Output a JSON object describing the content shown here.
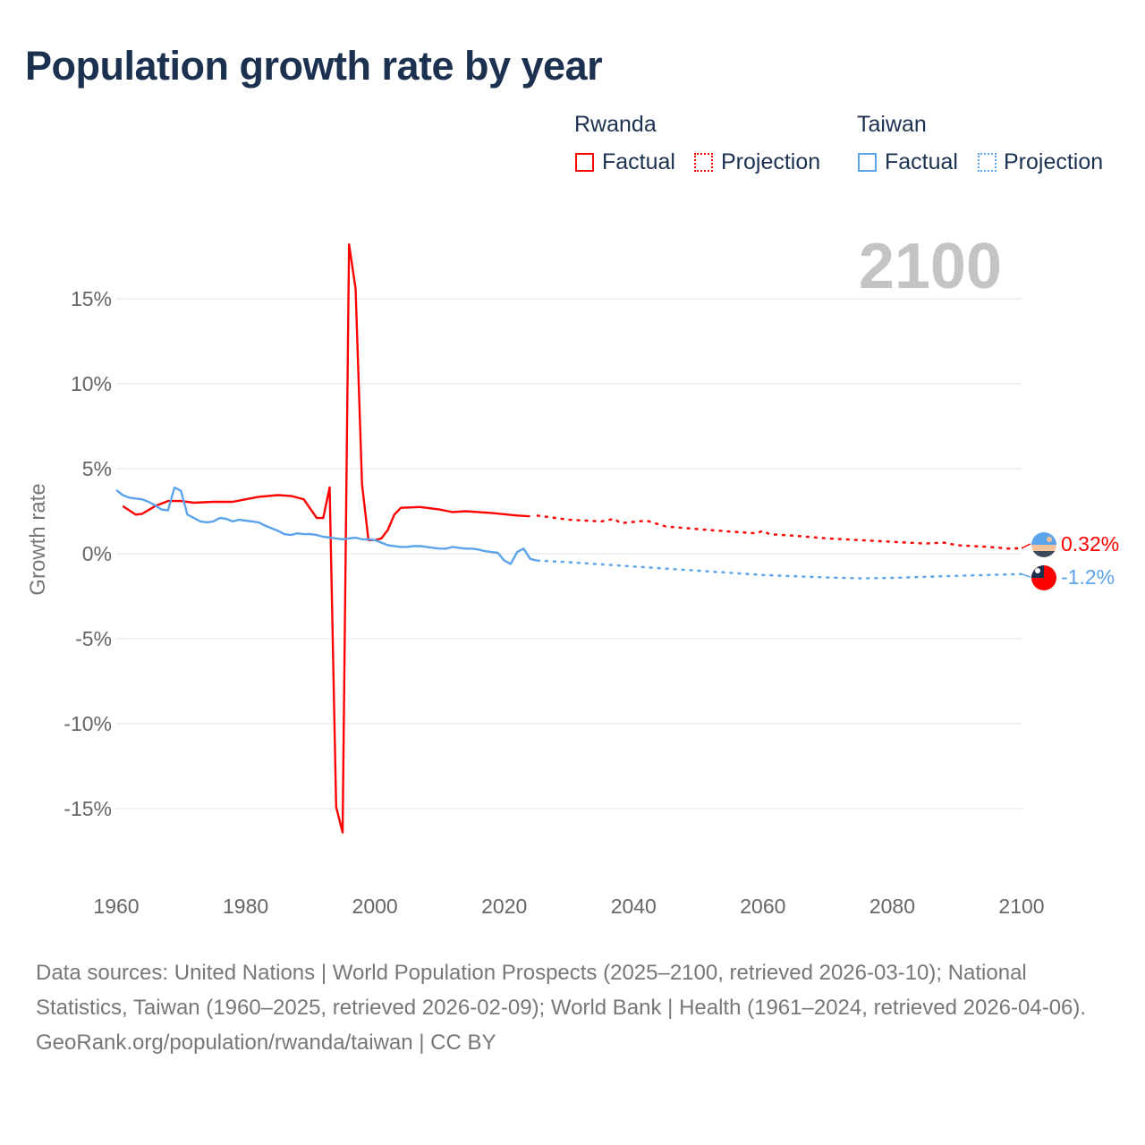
{
  "title": "Population growth rate by year",
  "legend": {
    "groups": [
      {
        "name": "Rwanda",
        "color": "#ff0000",
        "factual": "Factual",
        "projection": "Projection"
      },
      {
        "name": "Taiwan",
        "color": "#5ba3ea",
        "factual": "Factual",
        "projection": "Projection"
      }
    ]
  },
  "footer": {
    "sources": "Data sources: United Nations | World Population Prospects (2025–2100, retrieved 2026-03-10); National Statistics, Taiwan (1960–2025, retrieved 2026-02-09); World Bank | Health (1961–2024, retrieved 2026-04-06).",
    "link": "GeoRank.org/population/rwanda/taiwan | CC BY"
  },
  "chart_data": {
    "type": "line",
    "title": "Population growth rate by year",
    "year_label": "2100",
    "ylabel": "Growth rate",
    "xlim": [
      1960,
      2100
    ],
    "ylim": [
      -17,
      19
    ],
    "yticks": [
      15,
      10,
      5,
      0,
      -5,
      -10,
      -15
    ],
    "ytick_labels": [
      "15%",
      "10%",
      "5%",
      "0%",
      "-5%",
      "-10%",
      "-15%"
    ],
    "xticks": [
      1960,
      1980,
      2000,
      2020,
      2040,
      2060,
      2080,
      2100
    ],
    "xtick_labels": [
      "1960",
      "1980",
      "2000",
      "2020",
      "2040",
      "2060",
      "2080",
      "2100"
    ],
    "grid": true,
    "series": [
      {
        "name": "Rwanda",
        "color": "#ff0000",
        "end_label": "0.32%",
        "factual": [
          [
            1961,
            2.8
          ],
          [
            1963,
            2.3
          ],
          [
            1964,
            2.35
          ],
          [
            1966,
            2.8
          ],
          [
            1968,
            3.1
          ],
          [
            1970,
            3.1
          ],
          [
            1972,
            3.0
          ],
          [
            1975,
            3.05
          ],
          [
            1978,
            3.05
          ],
          [
            1980,
            3.2
          ],
          [
            1982,
            3.35
          ],
          [
            1985,
            3.45
          ],
          [
            1987,
            3.4
          ],
          [
            1989,
            3.2
          ],
          [
            1991,
            2.1
          ],
          [
            1992,
            2.1
          ],
          [
            1993,
            3.9
          ],
          [
            1994,
            -14.9
          ],
          [
            1995,
            -16.4
          ],
          [
            1996,
            18.2
          ],
          [
            1997,
            15.6
          ],
          [
            1998,
            4.1
          ],
          [
            1999,
            0.8
          ],
          [
            2000,
            0.8
          ],
          [
            2001,
            0.9
          ],
          [
            2002,
            1.4
          ],
          [
            2003,
            2.3
          ],
          [
            2004,
            2.7
          ],
          [
            2007,
            2.75
          ],
          [
            2010,
            2.6
          ],
          [
            2012,
            2.45
          ],
          [
            2014,
            2.5
          ],
          [
            2018,
            2.4
          ],
          [
            2022,
            2.25
          ],
          [
            2024,
            2.2
          ]
        ],
        "projection": [
          [
            2025,
            2.25
          ],
          [
            2030,
            2.0
          ],
          [
            2035,
            1.9
          ],
          [
            2037,
            2.05
          ],
          [
            2038,
            1.8
          ],
          [
            2042,
            1.95
          ],
          [
            2045,
            1.6
          ],
          [
            2050,
            1.45
          ],
          [
            2055,
            1.3
          ],
          [
            2059,
            1.2
          ],
          [
            2060,
            1.35
          ],
          [
            2061,
            1.15
          ],
          [
            2065,
            1.05
          ],
          [
            2070,
            0.9
          ],
          [
            2075,
            0.8
          ],
          [
            2080,
            0.7
          ],
          [
            2085,
            0.6
          ],
          [
            2088,
            0.65
          ],
          [
            2090,
            0.5
          ],
          [
            2095,
            0.4
          ],
          [
            2098,
            0.3
          ],
          [
            2100,
            0.32
          ]
        ]
      },
      {
        "name": "Taiwan",
        "color": "#5ba3ea",
        "end_label": "-1.2%",
        "factual": [
          [
            1960,
            3.75
          ],
          [
            1961,
            3.45
          ],
          [
            1962,
            3.3
          ],
          [
            1963,
            3.25
          ],
          [
            1964,
            3.2
          ],
          [
            1965,
            3.05
          ],
          [
            1966,
            2.85
          ],
          [
            1967,
            2.6
          ],
          [
            1968,
            2.55
          ],
          [
            1969,
            3.9
          ],
          [
            1970,
            3.7
          ],
          [
            1971,
            2.3
          ],
          [
            1972,
            2.1
          ],
          [
            1973,
            1.9
          ],
          [
            1974,
            1.85
          ],
          [
            1975,
            1.9
          ],
          [
            1976,
            2.1
          ],
          [
            1977,
            2.05
          ],
          [
            1978,
            1.9
          ],
          [
            1979,
            2.0
          ],
          [
            1980,
            1.95
          ],
          [
            1981,
            1.9
          ],
          [
            1982,
            1.85
          ],
          [
            1983,
            1.65
          ],
          [
            1984,
            1.5
          ],
          [
            1985,
            1.35
          ],
          [
            1986,
            1.15
          ],
          [
            1987,
            1.1
          ],
          [
            1988,
            1.2
          ],
          [
            1989,
            1.15
          ],
          [
            1990,
            1.15
          ],
          [
            1991,
            1.1
          ],
          [
            1992,
            1.0
          ],
          [
            1993,
            0.95
          ],
          [
            1994,
            0.9
          ],
          [
            1995,
            0.85
          ],
          [
            1996,
            0.9
          ],
          [
            1997,
            0.95
          ],
          [
            1998,
            0.85
          ],
          [
            1999,
            0.85
          ],
          [
            2000,
            0.8
          ],
          [
            2001,
            0.65
          ],
          [
            2002,
            0.5
          ],
          [
            2003,
            0.45
          ],
          [
            2004,
            0.4
          ],
          [
            2005,
            0.4
          ],
          [
            2006,
            0.45
          ],
          [
            2007,
            0.45
          ],
          [
            2008,
            0.4
          ],
          [
            2009,
            0.35
          ],
          [
            2010,
            0.3
          ],
          [
            2011,
            0.3
          ],
          [
            2012,
            0.4
          ],
          [
            2013,
            0.35
          ],
          [
            2014,
            0.3
          ],
          [
            2015,
            0.3
          ],
          [
            2016,
            0.25
          ],
          [
            2017,
            0.15
          ],
          [
            2018,
            0.1
          ],
          [
            2019,
            0.05
          ],
          [
            2020,
            -0.4
          ],
          [
            2021,
            -0.6
          ],
          [
            2022,
            0.1
          ],
          [
            2023,
            0.3
          ],
          [
            2024,
            -0.3
          ],
          [
            2025,
            -0.4
          ]
        ],
        "projection": [
          [
            2025,
            -0.4
          ],
          [
            2030,
            -0.5
          ],
          [
            2040,
            -0.75
          ],
          [
            2050,
            -1.0
          ],
          [
            2060,
            -1.25
          ],
          [
            2070,
            -1.4
          ],
          [
            2075,
            -1.45
          ],
          [
            2080,
            -1.42
          ],
          [
            2090,
            -1.3
          ],
          [
            2100,
            -1.2
          ]
        ]
      }
    ]
  }
}
